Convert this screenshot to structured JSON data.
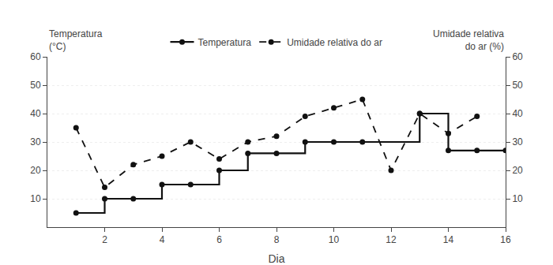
{
  "chart_data": {
    "type": "line",
    "ylabel": "Temperatura\n(°C)",
    "y2label": "Umidade relativa\ndo ar (%)",
    "xlabel": "Dia",
    "xlim": [
      0,
      16
    ],
    "xticks": [
      2,
      4,
      6,
      8,
      10,
      12,
      14,
      16
    ],
    "ylim": [
      0,
      60
    ],
    "yticks": [
      10,
      20,
      30,
      40,
      50,
      60
    ],
    "y2lim": [
      0,
      60
    ],
    "y2ticks": [
      10,
      20,
      30,
      40,
      50,
      60
    ],
    "grid": "y",
    "legend": "top",
    "series": [
      {
        "name": "Temperatura",
        "type": "step",
        "color": "#111111",
        "line_style": "solid",
        "marker": "circle",
        "x": [
          1,
          2,
          3,
          4,
          5,
          6,
          7,
          8,
          9,
          10,
          11,
          13,
          14,
          15,
          16
        ],
        "values": [
          5,
          10,
          10,
          15,
          15,
          20,
          26,
          26,
          30,
          30,
          30,
          40,
          27,
          27,
          27
        ]
      },
      {
        "name": "Umidade relativa do ar",
        "type": "line",
        "axis": "y2",
        "color": "#111111",
        "line_style": "dashed",
        "marker": "circle",
        "x": [
          1,
          2,
          3,
          4,
          5,
          6,
          7,
          8,
          9,
          10,
          11,
          12,
          13,
          14,
          15
        ],
        "values": [
          35,
          14,
          22,
          25,
          30,
          24,
          30,
          32,
          39,
          42,
          45,
          20,
          40,
          33,
          39
        ]
      }
    ]
  }
}
